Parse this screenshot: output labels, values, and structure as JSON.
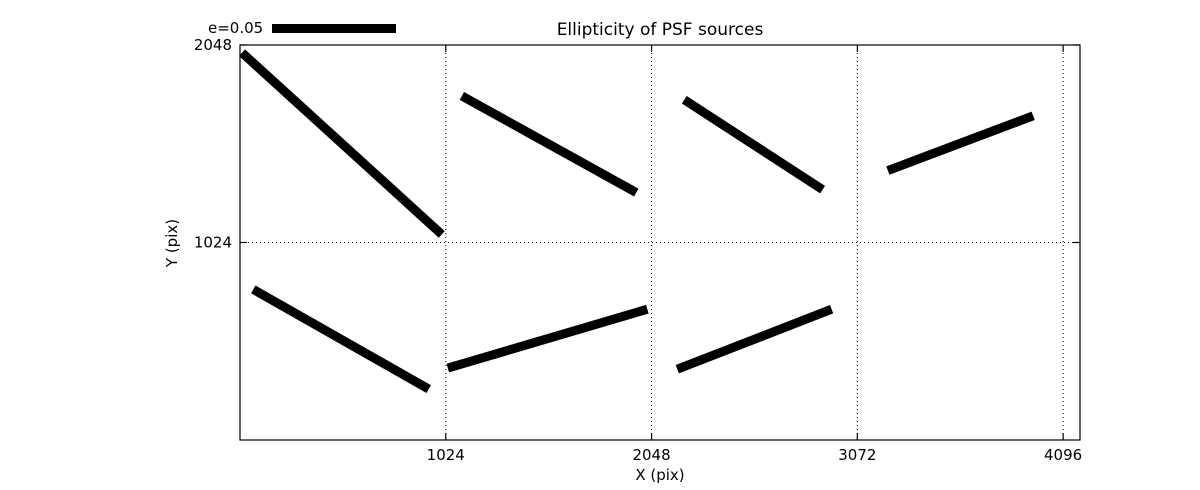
{
  "chart_data": {
    "type": "line",
    "title": "Ellipticity of PSF sources",
    "xlabel": "X (pix)",
    "ylabel": "Y (pix)",
    "xlim": [
      0,
      4180
    ],
    "ylim": [
      0,
      2048
    ],
    "x_ticks": [
      "1024",
      "2048",
      "3072",
      "4096"
    ],
    "y_ticks": [
      "1024",
      "2048"
    ],
    "grid": "dotted",
    "legend": {
      "label": "e=0.05",
      "position": "top-left-above-axes"
    },
    "series_color": "#000000",
    "background_color": "#ffffff",
    "whiskers": [
      {
        "x1": 10,
        "y1": 2008,
        "x2": 1004,
        "y2": 1066
      },
      {
        "x1": 1104,
        "y1": 1784,
        "x2": 1972,
        "y2": 1283
      },
      {
        "x1": 2211,
        "y1": 1764,
        "x2": 2899,
        "y2": 1298
      },
      {
        "x1": 3224,
        "y1": 1397,
        "x2": 3947,
        "y2": 1681
      },
      {
        "x1": 66,
        "y1": 781,
        "x2": 939,
        "y2": 264
      },
      {
        "x1": 1034,
        "y1": 373,
        "x2": 2027,
        "y2": 678
      },
      {
        "x1": 2176,
        "y1": 367,
        "x2": 2944,
        "y2": 678
      }
    ]
  }
}
